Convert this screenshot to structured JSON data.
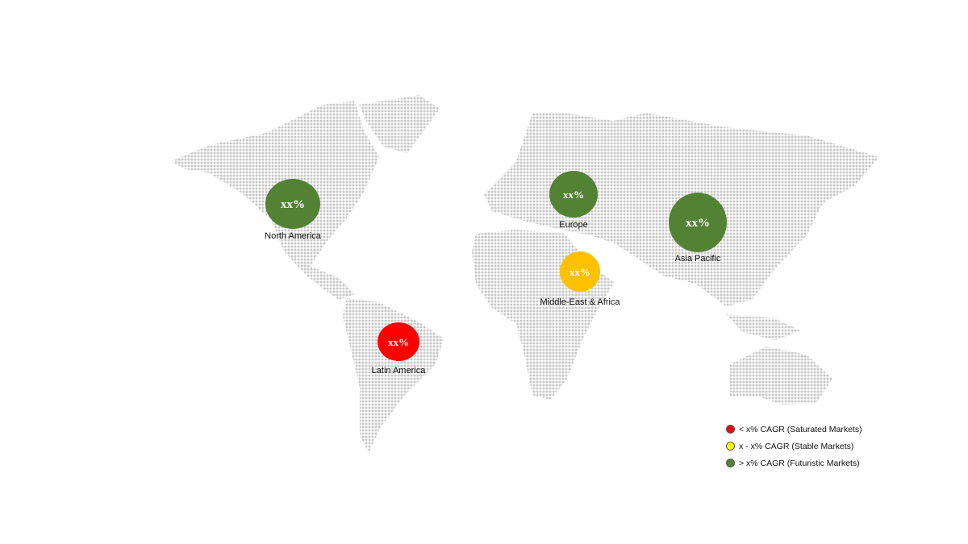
{
  "colors": {
    "saturated": "#ff0000",
    "stable": "#ffc000",
    "futuristic": "#548235",
    "land_dots": "#c6c6c6",
    "legend_stable": "#ffff00"
  },
  "regions": [
    {
      "name": "North America",
      "value": "xx%",
      "category": "futuristic"
    },
    {
      "name": "Europe",
      "value": "xx%",
      "category": "futuristic"
    },
    {
      "name": "Asia Pacific",
      "value": "xx%",
      "category": "futuristic"
    },
    {
      "name": "Middle-East & Africa",
      "value": "xx%",
      "category": "stable"
    },
    {
      "name": "Latin America",
      "value": "xx%",
      "category": "saturated"
    }
  ],
  "legend": [
    {
      "label": "< x% CAGR (Saturated Markets)",
      "category": "saturated"
    },
    {
      "label": "x - x% CAGR (Stable Markets)",
      "category": "stable"
    },
    {
      "label": "> x% CAGR (Futuristic Markets)",
      "category": "futuristic"
    }
  ]
}
